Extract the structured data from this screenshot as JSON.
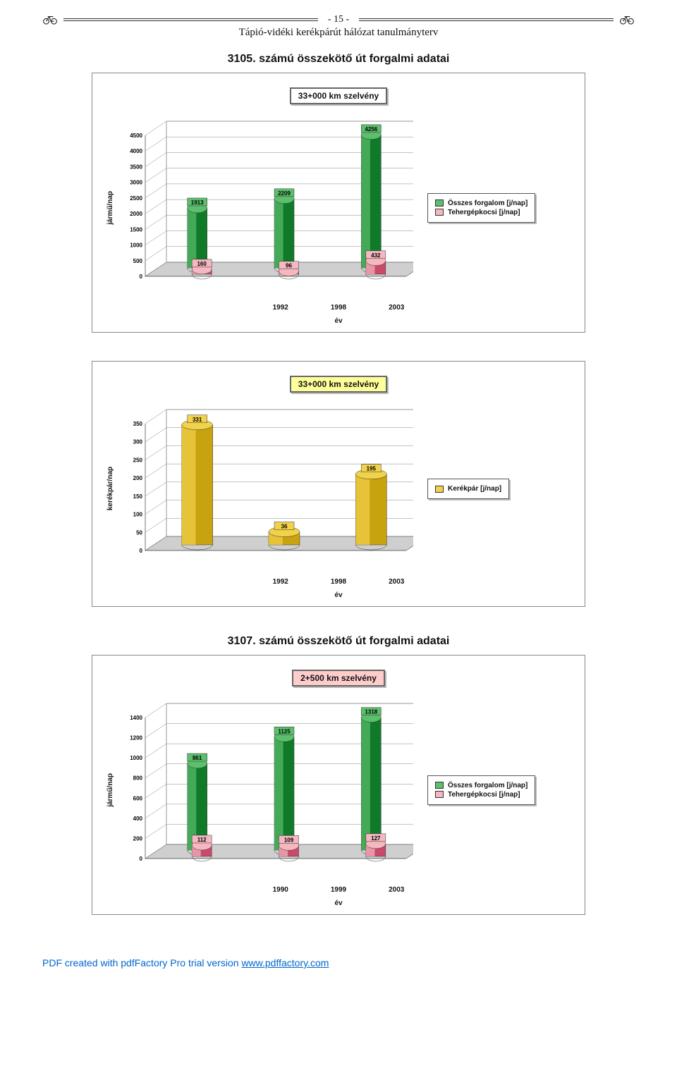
{
  "header": {
    "page_num": "- 15 -",
    "subtitle": "Tápió-vidéki kerékpárút hálózat tanulmányterv"
  },
  "colors": {
    "green_light": "#5bbf6b",
    "green_dark": "#0f7a28",
    "pink_light": "#f5b7c0",
    "pink_dark": "#c94a6a",
    "gold_light": "#f2d24a",
    "gold_dark": "#c9a20f",
    "grid": "#666666",
    "floor": "#cfcfcf"
  },
  "chart1": {
    "title": "3105. számú összekötő út forgalmi adatai",
    "badge": "33+000 km szelvény",
    "type": "3d-bar-grouped",
    "ylabel": "jármű/nap",
    "xlabel": "év",
    "ymax": 4500,
    "ystep": 500,
    "categories": [
      "1992",
      "1998",
      "2003"
    ],
    "series": [
      {
        "name": "Összes forgalom [j/nap]",
        "color_light": "#5bbf6b",
        "color_dark": "#0f7a28",
        "values": [
          1913,
          2209,
          4256
        ]
      },
      {
        "name": "Tehergépkocsi [j/nap]",
        "color_light": "#f5b7c0",
        "color_dark": "#c94a6a",
        "values": [
          160,
          96,
          432
        ]
      }
    ]
  },
  "chart2": {
    "badge": "33+000 km szelvény",
    "type": "3d-bar-single",
    "ylabel": "kerékpár/nap",
    "xlabel": "év",
    "ymax": 350,
    "ystep": 50,
    "categories": [
      "1992",
      "1998",
      "2003"
    ],
    "series": [
      {
        "name": "Kerékpár [j/nap]",
        "color_light": "#f2d24a",
        "color_dark": "#c9a20f",
        "values": [
          331,
          36,
          195
        ]
      }
    ]
  },
  "chart3": {
    "title": "3107. számú összekötő út forgalmi adatai",
    "badge": "2+500 km szelvény",
    "type": "3d-bar-grouped",
    "ylabel": "jármű/nap",
    "xlabel": "év",
    "ymax": 1400,
    "ystep": 200,
    "categories": [
      "1990",
      "1999",
      "2003"
    ],
    "series": [
      {
        "name": "Összes forgalom [j/nap]",
        "color_light": "#5bbf6b",
        "color_dark": "#0f7a28",
        "values": [
          861,
          1125,
          1318
        ]
      },
      {
        "name": "Tehergépkocsi [j/nap]",
        "color_light": "#f5b7c0",
        "color_dark": "#c94a6a",
        "values": [
          112,
          109,
          127
        ]
      }
    ]
  },
  "footer": {
    "prefix": "PDF created with pdfFactory Pro trial version ",
    "link_text": "www.pdffactory.com",
    "link_href": "http://www.pdffactory.com"
  }
}
